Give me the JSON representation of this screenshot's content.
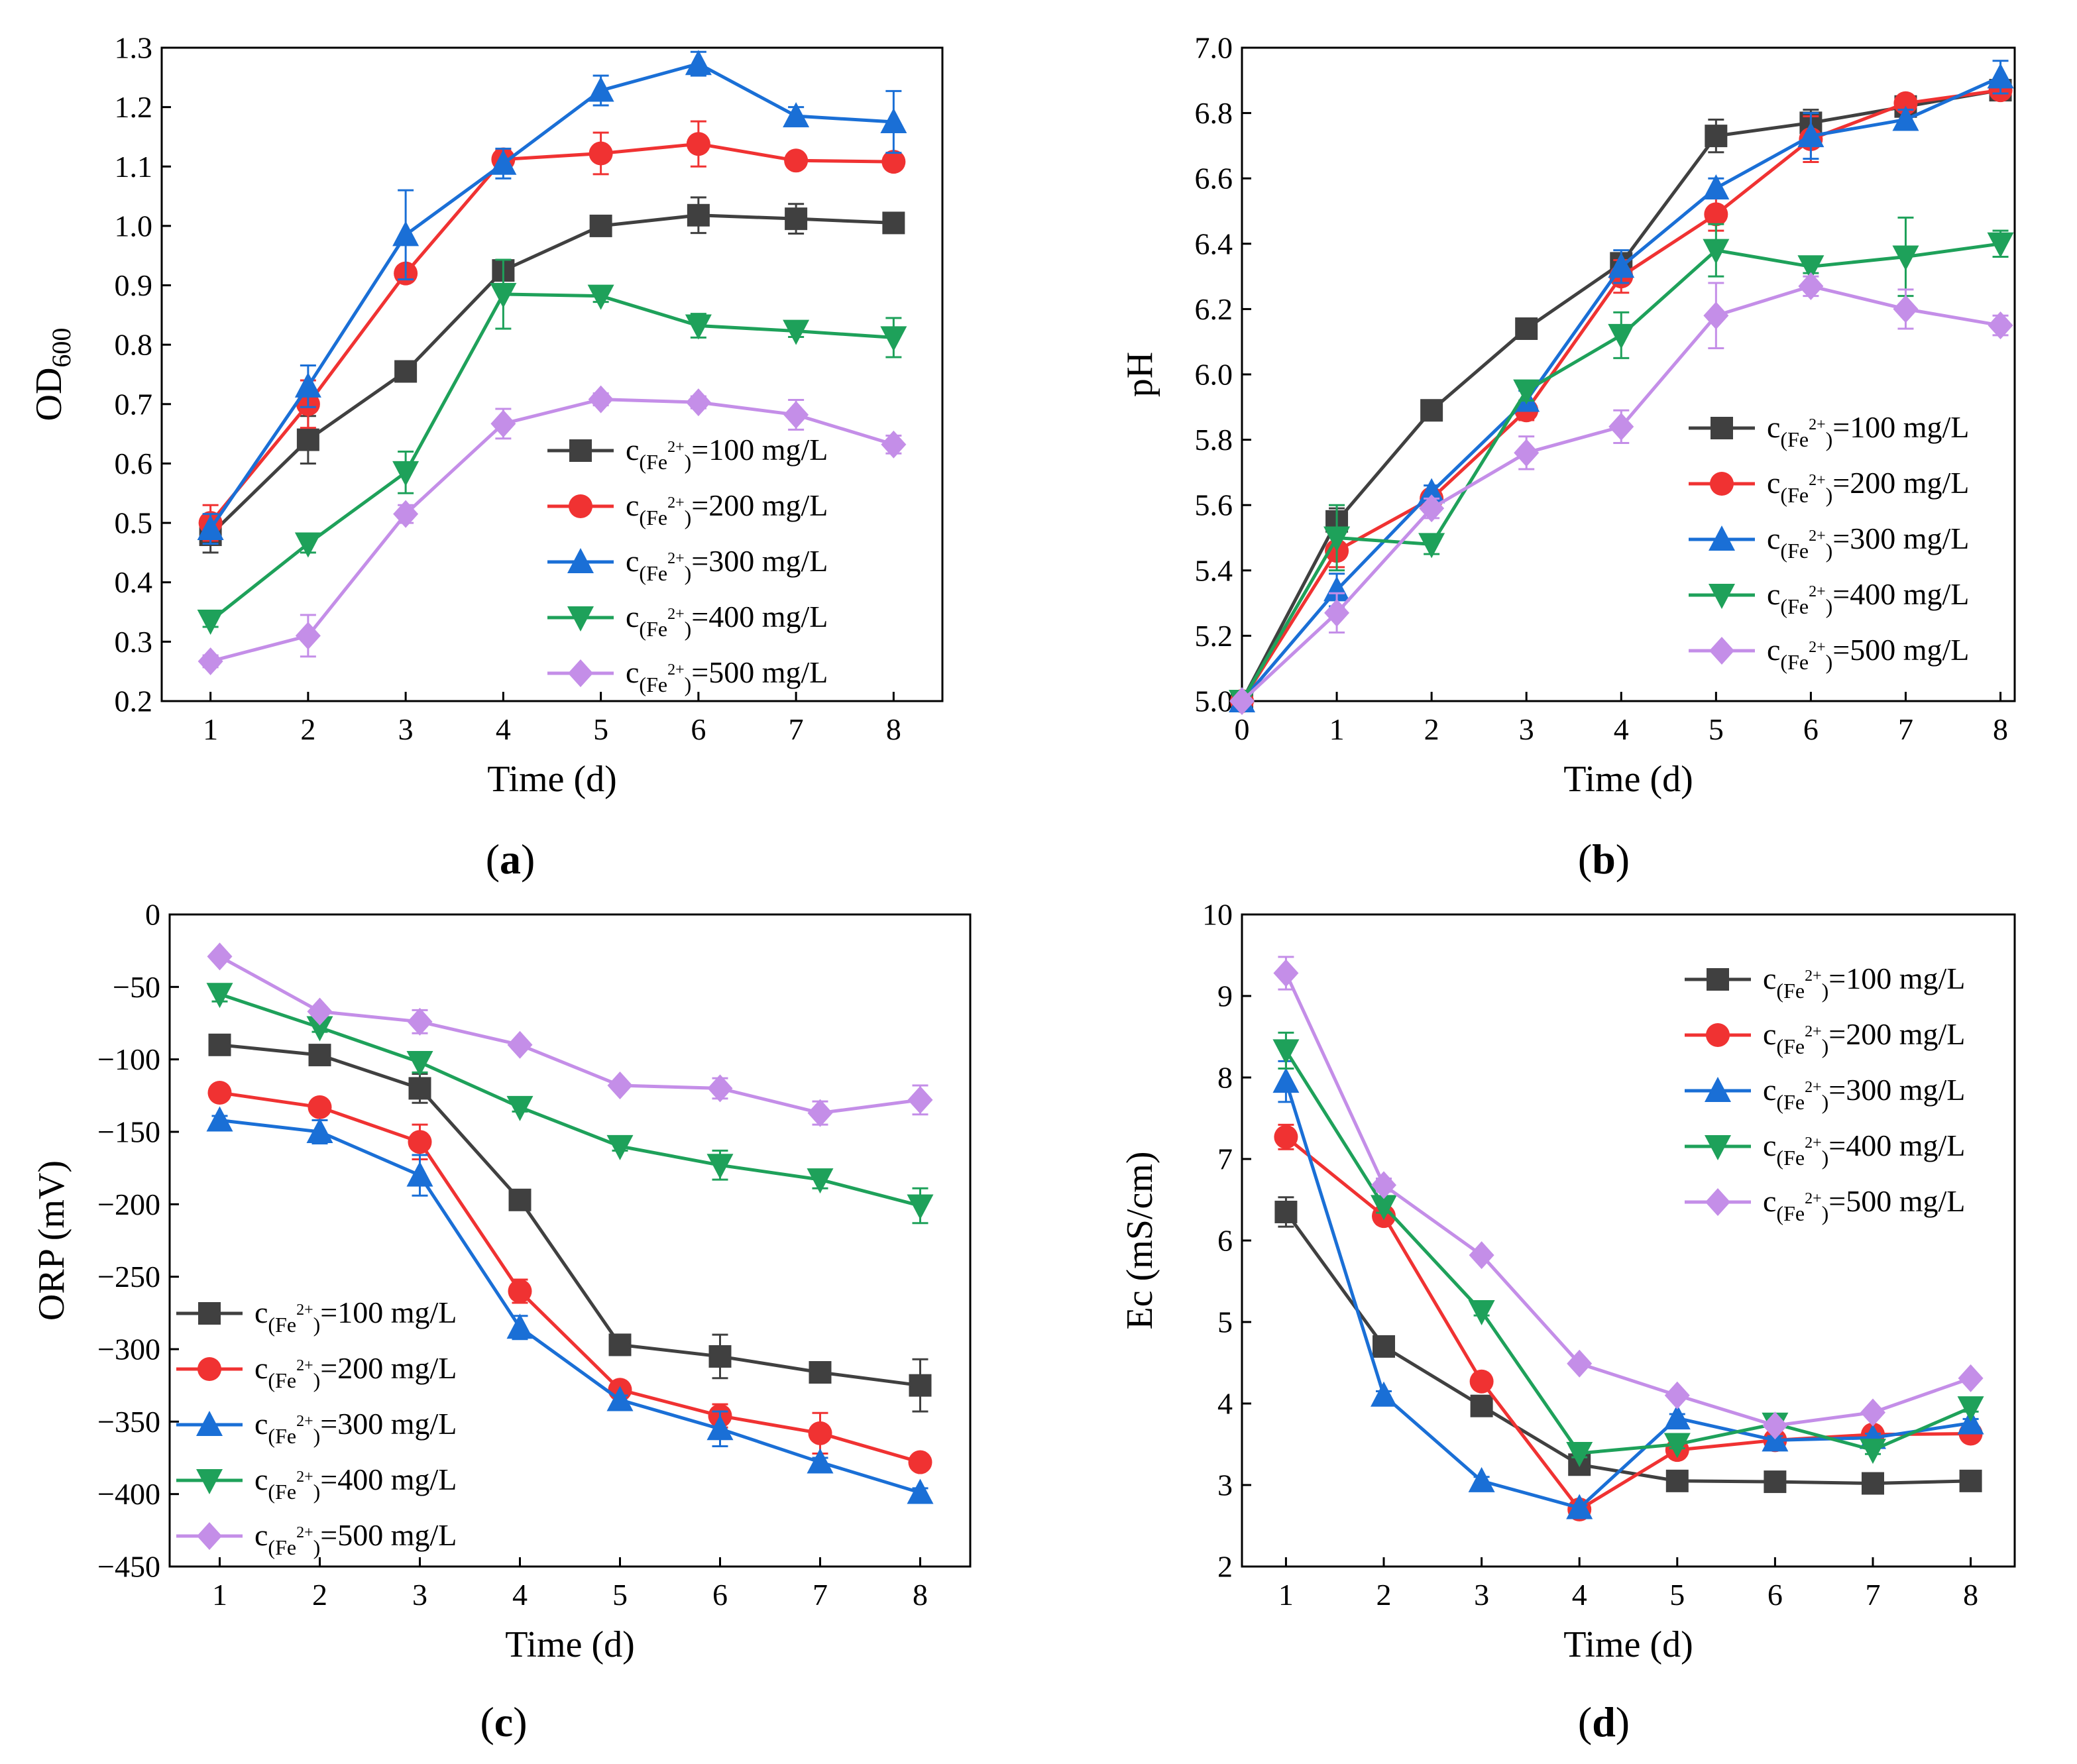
{
  "figure": {
    "colors": {
      "c100": "#404040",
      "c200": "#f03232",
      "c300": "#1a6fd6",
      "c400": "#1ea15a",
      "c500": "#c48ee8"
    }
  },
  "chart_data": [
    {
      "type": "line",
      "panel": "a",
      "caption": {
        "open": "(",
        "letter": "a",
        "close": ")"
      },
      "xlabel": "Time (d)",
      "ylabel": {
        "main": "OD",
        "sub": "600"
      },
      "x": [
        1,
        2,
        3,
        4,
        5,
        6,
        7,
        8
      ],
      "xlim": [
        0.5,
        8.5
      ],
      "ylim": [
        0.2,
        1.3
      ],
      "xticks": [
        "1",
        "2",
        "3",
        "4",
        "5",
        "6",
        "7",
        "8"
      ],
      "yticks": [
        "0.2",
        "0.3",
        "0.4",
        "0.5",
        "0.6",
        "0.7",
        "0.8",
        "0.9",
        "1.0",
        "1.1",
        "1.2",
        "1.3"
      ],
      "legend_position": "bottom-right",
      "series": [
        {
          "key": "c100",
          "name": "c(Fe2+)=100 mg/L",
          "label_pre": "c",
          "label_sub": "(Fe",
          "label_sup": "2+",
          "label_sub_end": ")",
          "label_post": "=100 mg/L",
          "marker": "square",
          "values": [
            0.48,
            0.64,
            0.755,
            0.925,
            1.0,
            1.018,
            1.012,
            1.005
          ],
          "errors": [
            0.03,
            0.04,
            0.01,
            0.015,
            0.015,
            0.03,
            0.025,
            0.015
          ]
        },
        {
          "key": "c200",
          "name": "c(Fe2+)=200 mg/L",
          "label_pre": "c",
          "label_sub": "(Fe",
          "label_sup": "2+",
          "label_sub_end": ")",
          "label_post": "=200 mg/L",
          "marker": "circle",
          "values": [
            0.5,
            0.7,
            0.92,
            1.112,
            1.122,
            1.138,
            1.11,
            1.108
          ],
          "errors": [
            0.03,
            0.04,
            0.01,
            0.015,
            0.035,
            0.038,
            0.01,
            0.01
          ]
        },
        {
          "key": "c300",
          "name": "c(Fe2+)=300 mg/L",
          "label_pre": "c",
          "label_sub": "(Fe",
          "label_sup": "2+",
          "label_sub_end": ")",
          "label_post": "=300 mg/L",
          "marker": "triangle-up",
          "values": [
            0.49,
            0.73,
            0.985,
            1.105,
            1.228,
            1.273,
            1.185,
            1.175
          ],
          "errors": [
            0.025,
            0.035,
            0.075,
            0.025,
            0.025,
            0.02,
            0.015,
            0.052
          ]
        },
        {
          "key": "c400",
          "name": "c(Fe2+)=400 mg/L",
          "label_pre": "c",
          "label_sub": "(Fe",
          "label_sup": "2+",
          "label_sub_end": ")",
          "label_post": "=400 mg/L",
          "marker": "triangle-down",
          "values": [
            0.335,
            0.465,
            0.585,
            0.885,
            0.882,
            0.832,
            0.823,
            0.812
          ],
          "errors": [
            0.01,
            0.015,
            0.035,
            0.058,
            0.01,
            0.02,
            0.01,
            0.033
          ]
        },
        {
          "key": "c500",
          "name": "c(Fe2+)=500 mg/L",
          "label_pre": "c",
          "label_sub": "(Fe",
          "label_sup": "2+",
          "label_sub_end": ")",
          "label_post": "=500 mg/L",
          "marker": "diamond",
          "values": [
            0.267,
            0.31,
            0.515,
            0.667,
            0.708,
            0.703,
            0.682,
            0.632
          ],
          "errors": [
            0.01,
            0.035,
            0.015,
            0.025,
            0.01,
            0.01,
            0.025,
            0.015
          ]
        }
      ]
    },
    {
      "type": "line",
      "panel": "b",
      "caption": {
        "open": "(",
        "letter": "b",
        "close": ")"
      },
      "xlabel": "Time (d)",
      "ylabel": {
        "main": "pH",
        "sub": ""
      },
      "x": [
        0,
        1,
        2,
        3,
        4,
        5,
        6,
        7,
        8
      ],
      "xlim": [
        0,
        8.15
      ],
      "ylim": [
        5.0,
        7.0
      ],
      "xticks": [
        "0",
        "1",
        "2",
        "3",
        "4",
        "5",
        "6",
        "7",
        "8"
      ],
      "yticks": [
        "5.0",
        "5.2",
        "5.4",
        "5.6",
        "5.8",
        "6.0",
        "6.2",
        "6.4",
        "6.6",
        "6.8",
        "7.0"
      ],
      "legend_position": "bottom-right",
      "series": [
        {
          "key": "c100",
          "name": "c(Fe2+)=100 mg/L",
          "label_pre": "c",
          "label_sub": "(Fe",
          "label_sup": "2+",
          "label_sub_end": ")",
          "label_post": "=100 mg/L",
          "marker": "square",
          "values": [
            5.0,
            5.55,
            5.89,
            6.14,
            6.34,
            6.73,
            6.77,
            6.82,
            6.87
          ],
          "errors": [
            0,
            0.04,
            0.02,
            0.03,
            0.02,
            0.05,
            0.04,
            0.02,
            0.02
          ]
        },
        {
          "key": "c200",
          "name": "c(Fe2+)=200 mg/L",
          "label_pre": "c",
          "label_sub": "(Fe",
          "label_sup": "2+",
          "label_sub_end": ")",
          "label_post": "=200 mg/L",
          "marker": "circle",
          "values": [
            5.0,
            5.46,
            5.62,
            5.89,
            6.3,
            6.49,
            6.72,
            6.83,
            6.87
          ],
          "errors": [
            0,
            0.05,
            0.02,
            0.03,
            0.05,
            0.05,
            0.07,
            0.02,
            0.02
          ]
        },
        {
          "key": "c300",
          "name": "c(Fe2+)=300 mg/L",
          "label_pre": "c",
          "label_sub": "(Fe",
          "label_sup": "2+",
          "label_sub_end": ")",
          "label_post": "=300 mg/L",
          "marker": "triangle-up",
          "values": [
            5.0,
            5.34,
            5.64,
            5.92,
            6.33,
            6.57,
            6.73,
            6.78,
            6.91
          ],
          "errors": [
            0,
            0.05,
            0.02,
            0.03,
            0.05,
            0.03,
            0.07,
            0.03,
            0.05
          ]
        },
        {
          "key": "c400",
          "name": "c(Fe2+)=400 mg/L",
          "label_pre": "c",
          "label_sub": "(Fe",
          "label_sup": "2+",
          "label_sub_end": ")",
          "label_post": "=400 mg/L",
          "marker": "triangle-down",
          "values": [
            5.0,
            5.5,
            5.48,
            5.95,
            6.12,
            6.38,
            6.33,
            6.36,
            6.4
          ],
          "errors": [
            0,
            0.1,
            0.03,
            0.03,
            0.07,
            0.08,
            0.02,
            0.12,
            0.04
          ]
        },
        {
          "key": "c500",
          "name": "c(Fe2+)=500 mg/L",
          "label_pre": "c",
          "label_sub": "(Fe",
          "label_sup": "2+",
          "label_sub_end": ")",
          "label_post": "=500 mg/L",
          "marker": "diamond",
          "values": [
            5.0,
            5.27,
            5.59,
            5.76,
            5.84,
            6.18,
            6.27,
            6.2,
            6.15
          ],
          "errors": [
            0,
            0.06,
            0.03,
            0.05,
            0.05,
            0.1,
            0.03,
            0.06,
            0.03
          ]
        }
      ]
    },
    {
      "type": "line",
      "panel": "c",
      "caption": {
        "open": "(",
        "letter": "c",
        "close": ")"
      },
      "xlabel": "Time (d)",
      "ylabel": {
        "main": "ORP (mV)",
        "sub": ""
      },
      "x": [
        1,
        2,
        3,
        4,
        5,
        6,
        7,
        8
      ],
      "xlim": [
        0.5,
        8.5
      ],
      "ylim": [
        -450,
        0
      ],
      "xticks": [
        "1",
        "2",
        "3",
        "4",
        "5",
        "6",
        "7",
        "8"
      ],
      "yticks": [
        "0",
        "−50",
        "−100",
        "−150",
        "−200",
        "−250",
        "−300",
        "−350",
        "−400",
        "−450"
      ],
      "ytick_values": [
        0,
        -50,
        -100,
        -150,
        -200,
        -250,
        -300,
        -350,
        -400,
        -450
      ],
      "legend_position": "bottom-left",
      "series": [
        {
          "key": "c100",
          "name": "c(Fe2+)=100 mg/L",
          "label_pre": "c",
          "label_sub": "(Fe",
          "label_sup": "2+",
          "label_sub_end": ")",
          "label_post": "=100 mg/L",
          "marker": "square",
          "values": [
            -90,
            -97,
            -120,
            -197,
            -297,
            -305,
            -316,
            -325
          ],
          "errors": [
            3,
            3,
            10,
            3,
            7,
            15,
            5,
            18
          ]
        },
        {
          "key": "c200",
          "name": "c(Fe2+)=200 mg/L",
          "label_pre": "c",
          "label_sub": "(Fe",
          "label_sup": "2+",
          "label_sub_end": ")",
          "label_post": "=200 mg/L",
          "marker": "circle",
          "values": [
            -123,
            -133,
            -157,
            -260,
            -328,
            -346,
            -358,
            -378
          ],
          "errors": [
            3,
            3,
            12,
            8,
            3,
            8,
            14,
            3
          ]
        },
        {
          "key": "c300",
          "name": "c(Fe2+)=300 mg/L",
          "label_pre": "c",
          "label_sub": "(Fe",
          "label_sup": "2+",
          "label_sub_end": ")",
          "label_post": "=300 mg/L",
          "marker": "triangle-up",
          "values": [
            -142,
            -150,
            -180,
            -285,
            -335,
            -355,
            -378,
            -399
          ],
          "errors": [
            3,
            8,
            14,
            8,
            3,
            12,
            3,
            3
          ]
        },
        {
          "key": "c400",
          "name": "c(Fe2+)=400 mg/L",
          "label_pre": "c",
          "label_sub": "(Fe",
          "label_sup": "2+",
          "label_sub_end": ")",
          "label_post": "=400 mg/L",
          "marker": "triangle-down",
          "values": [
            -55,
            -78,
            -102,
            -133,
            -160,
            -173,
            -183,
            -201
          ],
          "errors": [
            5,
            3,
            7,
            3,
            3,
            10,
            6,
            12
          ]
        },
        {
          "key": "c500",
          "name": "c(Fe2+)=500 mg/L",
          "label_pre": "c",
          "label_sub": "(Fe",
          "label_sup": "2+",
          "label_sub_end": ")",
          "label_post": "=500 mg/L",
          "marker": "diamond",
          "values": [
            -29,
            -67,
            -74,
            -90,
            -118,
            -120,
            -137,
            -128
          ],
          "errors": [
            3,
            3,
            8,
            3,
            3,
            7,
            8,
            10
          ]
        }
      ]
    },
    {
      "type": "line",
      "panel": "d",
      "caption": {
        "open": "(",
        "letter": "d",
        "close": ")"
      },
      "xlabel": "Time (d)",
      "ylabel": {
        "main": "Ec (mS/cm)",
        "sub": ""
      },
      "x": [
        1,
        2,
        3,
        4,
        5,
        6,
        7,
        8
      ],
      "xlim": [
        0.55,
        8.45
      ],
      "ylim": [
        2,
        10
      ],
      "xticks": [
        "1",
        "2",
        "3",
        "4",
        "5",
        "6",
        "7",
        "8"
      ],
      "yticks": [
        "2",
        "3",
        "4",
        "5",
        "6",
        "7",
        "8",
        "9",
        "10"
      ],
      "legend_position": "top-right",
      "series": [
        {
          "key": "c100",
          "name": "c(Fe2+)=100 mg/L",
          "label_pre": "c",
          "label_sub": "(Fe",
          "label_sup": "2+",
          "label_sub_end": ")",
          "label_post": "=100 mg/L",
          "marker": "square",
          "values": [
            6.35,
            4.7,
            3.97,
            3.25,
            3.05,
            3.04,
            3.02,
            3.05
          ],
          "errors": [
            0.18,
            0.12,
            0.05,
            0.05,
            0.03,
            0.03,
            0.03,
            0.03
          ]
        },
        {
          "key": "c200",
          "name": "c(Fe2+)=200 mg/L",
          "label_pre": "c",
          "label_sub": "(Fe",
          "label_sup": "2+",
          "label_sub_end": ")",
          "label_post": "=200 mg/L",
          "marker": "circle",
          "values": [
            7.27,
            6.3,
            4.27,
            2.7,
            3.43,
            3.55,
            3.62,
            3.63
          ],
          "errors": [
            0.15,
            0.1,
            0.05,
            0.05,
            0.05,
            0.05,
            0.05,
            0.03
          ]
        },
        {
          "key": "c300",
          "name": "c(Fe2+)=300 mg/L",
          "label_pre": "c",
          "label_sub": "(Fe",
          "label_sup": "2+",
          "label_sub_end": ")",
          "label_post": "=300 mg/L",
          "marker": "triangle-up",
          "values": [
            7.95,
            4.1,
            3.05,
            2.72,
            3.82,
            3.55,
            3.58,
            3.76
          ],
          "errors": [
            0.25,
            0.05,
            0.05,
            0.03,
            0.05,
            0.05,
            0.05,
            0.05
          ]
        },
        {
          "key": "c400",
          "name": "c(Fe2+)=400 mg/L",
          "label_pre": "c",
          "label_sub": "(Fe",
          "label_sup": "2+",
          "label_sub_end": ")",
          "label_post": "=400 mg/L",
          "marker": "triangle-down",
          "values": [
            8.33,
            6.42,
            5.13,
            3.39,
            3.5,
            3.75,
            3.43,
            3.95
          ],
          "errors": [
            0.22,
            0.08,
            0.05,
            0.05,
            0.05,
            0.05,
            0.05,
            0.05
          ]
        },
        {
          "key": "c500",
          "name": "c(Fe2+)=500 mg/L",
          "label_pre": "c",
          "label_sub": "(Fe",
          "label_sup": "2+",
          "label_sub_end": ")",
          "label_post": "=500 mg/L",
          "marker": "diamond",
          "values": [
            9.28,
            6.68,
            5.82,
            4.49,
            4.1,
            3.73,
            3.89,
            4.31
          ],
          "errors": [
            0.2,
            0.08,
            0.05,
            0.05,
            0.05,
            0.05,
            0.05,
            0.05
          ]
        }
      ]
    }
  ]
}
